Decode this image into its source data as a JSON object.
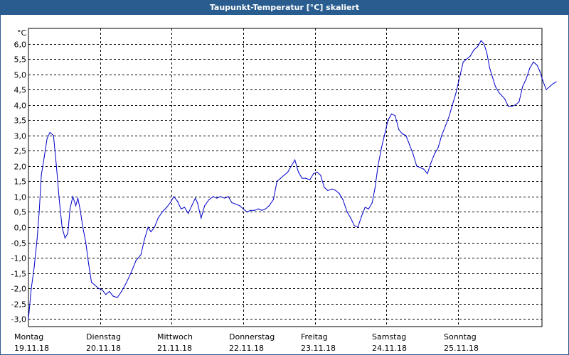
{
  "window": {
    "title": "Taupunkt-Temperatur [°C] skaliert"
  },
  "colors": {
    "title_bar": "#2a5d8f",
    "line": "#0000cc",
    "grid": "#000000"
  },
  "chart_data": {
    "type": "line",
    "title": "Taupunkt-Temperatur [°C] skaliert",
    "ylabel": "°C",
    "xlabel": "",
    "ylim": [
      -3.25,
      6.5
    ],
    "xlim": [
      0,
      7.17
    ],
    "grid": true,
    "y_ticks": [
      "6,0",
      "5,5",
      "5,0",
      "4,5",
      "4,0",
      "3,5",
      "3,0",
      "2,5",
      "2,0",
      "1,5",
      "1,0",
      "0,5",
      "0,0",
      "-0,5",
      "-1,0",
      "-1,5",
      "-2,0",
      "-2,5",
      "-3,0"
    ],
    "y_tick_values": [
      6.0,
      5.5,
      5.0,
      4.5,
      4.0,
      3.5,
      3.0,
      2.5,
      2.0,
      1.5,
      1.0,
      0.5,
      0.0,
      -0.5,
      -1.0,
      -1.5,
      -2.0,
      -2.5,
      -3.0
    ],
    "x_days": [
      {
        "day": "Montag",
        "date": "19.11.18",
        "x": 0
      },
      {
        "day": "Dienstag",
        "date": "20.11.18",
        "x": 1
      },
      {
        "day": "Mittwoch",
        "date": "21.11.18",
        "x": 2
      },
      {
        "day": "Donnerstag",
        "date": "22.11.18",
        "x": 3
      },
      {
        "day": "Freitag",
        "date": "23.11.18",
        "x": 4
      },
      {
        "day": "Samstag",
        "date": "24.11.18",
        "x": 5
      },
      {
        "day": "Sonntag",
        "date": "25.11.18",
        "x": 6
      }
    ],
    "series": [
      {
        "values": [
          [
            0.0,
            -3.0
          ],
          [
            0.04,
            -2.0
          ],
          [
            0.08,
            -1.3
          ],
          [
            0.12,
            -0.4
          ],
          [
            0.15,
            0.5
          ],
          [
            0.18,
            1.7
          ],
          [
            0.22,
            2.3
          ],
          [
            0.26,
            2.9
          ],
          [
            0.3,
            3.1
          ],
          [
            0.35,
            3.0
          ],
          [
            0.39,
            2.0
          ],
          [
            0.43,
            0.9
          ],
          [
            0.47,
            0.0
          ],
          [
            0.51,
            -0.35
          ],
          [
            0.55,
            -0.2
          ],
          [
            0.58,
            0.6
          ],
          [
            0.62,
            1.0
          ],
          [
            0.66,
            0.7
          ],
          [
            0.69,
            0.95
          ],
          [
            0.72,
            0.6
          ],
          [
            0.76,
            0.0
          ],
          [
            0.8,
            -0.5
          ],
          [
            0.84,
            -1.2
          ],
          [
            0.88,
            -1.8
          ],
          [
            0.93,
            -1.9
          ],
          [
            0.98,
            -2.0
          ],
          [
            1.03,
            -2.05
          ],
          [
            1.08,
            -2.2
          ],
          [
            1.13,
            -2.1
          ],
          [
            1.18,
            -2.25
          ],
          [
            1.24,
            -2.3
          ],
          [
            1.3,
            -2.1
          ],
          [
            1.37,
            -1.8
          ],
          [
            1.43,
            -1.5
          ],
          [
            1.5,
            -1.1
          ],
          [
            1.57,
            -0.9
          ],
          [
            1.62,
            -0.4
          ],
          [
            1.67,
            0.0
          ],
          [
            1.71,
            -0.15
          ],
          [
            1.76,
            0.0
          ],
          [
            1.81,
            0.3
          ],
          [
            1.87,
            0.5
          ],
          [
            1.93,
            0.65
          ],
          [
            1.98,
            0.8
          ],
          [
            2.03,
            1.0
          ],
          [
            2.08,
            0.85
          ],
          [
            2.13,
            0.6
          ],
          [
            2.18,
            0.65
          ],
          [
            2.23,
            0.45
          ],
          [
            2.28,
            0.7
          ],
          [
            2.33,
            0.95
          ],
          [
            2.36,
            0.8
          ],
          [
            2.41,
            0.3
          ],
          [
            2.46,
            0.7
          ],
          [
            2.52,
            0.9
          ],
          [
            2.58,
            1.0
          ],
          [
            2.63,
            0.95
          ],
          [
            2.68,
            1.0
          ],
          [
            2.74,
            0.95
          ],
          [
            2.79,
            1.0
          ],
          [
            2.84,
            0.8
          ],
          [
            2.9,
            0.75
          ],
          [
            2.95,
            0.7
          ],
          [
            3.0,
            0.6
          ],
          [
            3.05,
            0.5
          ],
          [
            3.1,
            0.55
          ],
          [
            3.16,
            0.55
          ],
          [
            3.21,
            0.6
          ],
          [
            3.26,
            0.55
          ],
          [
            3.31,
            0.6
          ],
          [
            3.36,
            0.7
          ],
          [
            3.42,
            0.9
          ],
          [
            3.47,
            1.5
          ],
          [
            3.52,
            1.6
          ],
          [
            3.57,
            1.7
          ],
          [
            3.62,
            1.8
          ],
          [
            3.67,
            2.0
          ],
          [
            3.72,
            2.2
          ],
          [
            3.77,
            1.8
          ],
          [
            3.82,
            1.6
          ],
          [
            3.87,
            1.6
          ],
          [
            3.93,
            1.55
          ],
          [
            3.98,
            1.75
          ],
          [
            4.03,
            1.8
          ],
          [
            4.08,
            1.7
          ],
          [
            4.13,
            1.3
          ],
          [
            4.18,
            1.2
          ],
          [
            4.24,
            1.25
          ],
          [
            4.29,
            1.2
          ],
          [
            4.34,
            1.1
          ],
          [
            4.39,
            0.9
          ],
          [
            4.45,
            0.5
          ],
          [
            4.5,
            0.3
          ],
          [
            4.55,
            0.05
          ],
          [
            4.6,
            0.0
          ],
          [
            4.65,
            0.35
          ],
          [
            4.7,
            0.65
          ],
          [
            4.75,
            0.6
          ],
          [
            4.8,
            0.8
          ],
          [
            4.84,
            1.3
          ],
          [
            4.88,
            2.0
          ],
          [
            4.93,
            2.6
          ],
          [
            4.98,
            3.1
          ],
          [
            5.02,
            3.5
          ],
          [
            5.07,
            3.7
          ],
          [
            5.12,
            3.65
          ],
          [
            5.17,
            3.2
          ],
          [
            5.22,
            3.05
          ],
          [
            5.27,
            3.0
          ],
          [
            5.32,
            2.7
          ],
          [
            5.37,
            2.4
          ],
          [
            5.42,
            2.0
          ],
          [
            5.47,
            1.95
          ],
          [
            5.52,
            1.9
          ],
          [
            5.57,
            1.75
          ],
          [
            5.62,
            2.1
          ],
          [
            5.67,
            2.4
          ],
          [
            5.72,
            2.6
          ],
          [
            5.77,
            3.0
          ],
          [
            5.82,
            3.3
          ],
          [
            5.87,
            3.6
          ],
          [
            5.92,
            4.0
          ],
          [
            5.97,
            4.4
          ],
          [
            6.02,
            4.9
          ],
          [
            6.07,
            5.4
          ],
          [
            6.12,
            5.5
          ],
          [
            6.17,
            5.6
          ],
          [
            6.22,
            5.8
          ],
          [
            6.27,
            5.9
          ],
          [
            6.32,
            6.1
          ],
          [
            6.36,
            6.0
          ],
          [
            6.4,
            5.7
          ],
          [
            6.44,
            5.2
          ],
          [
            6.48,
            4.9
          ],
          [
            6.52,
            4.6
          ],
          [
            6.57,
            4.4
          ],
          [
            6.61,
            4.3
          ],
          [
            6.65,
            4.2
          ],
          [
            6.7,
            3.95
          ],
          [
            6.75,
            3.95
          ],
          [
            6.8,
            4.0
          ],
          [
            6.85,
            4.1
          ],
          [
            6.9,
            4.6
          ],
          [
            6.95,
            4.85
          ],
          [
            7.0,
            5.2
          ],
          [
            7.05,
            5.4
          ],
          [
            7.1,
            5.3
          ],
          [
            7.14,
            5.1
          ],
          [
            7.18,
            4.8
          ],
          [
            7.23,
            4.5
          ],
          [
            7.28,
            4.6
          ],
          [
            7.33,
            4.7
          ],
          [
            7.37,
            4.75
          ]
        ]
      }
    ]
  }
}
